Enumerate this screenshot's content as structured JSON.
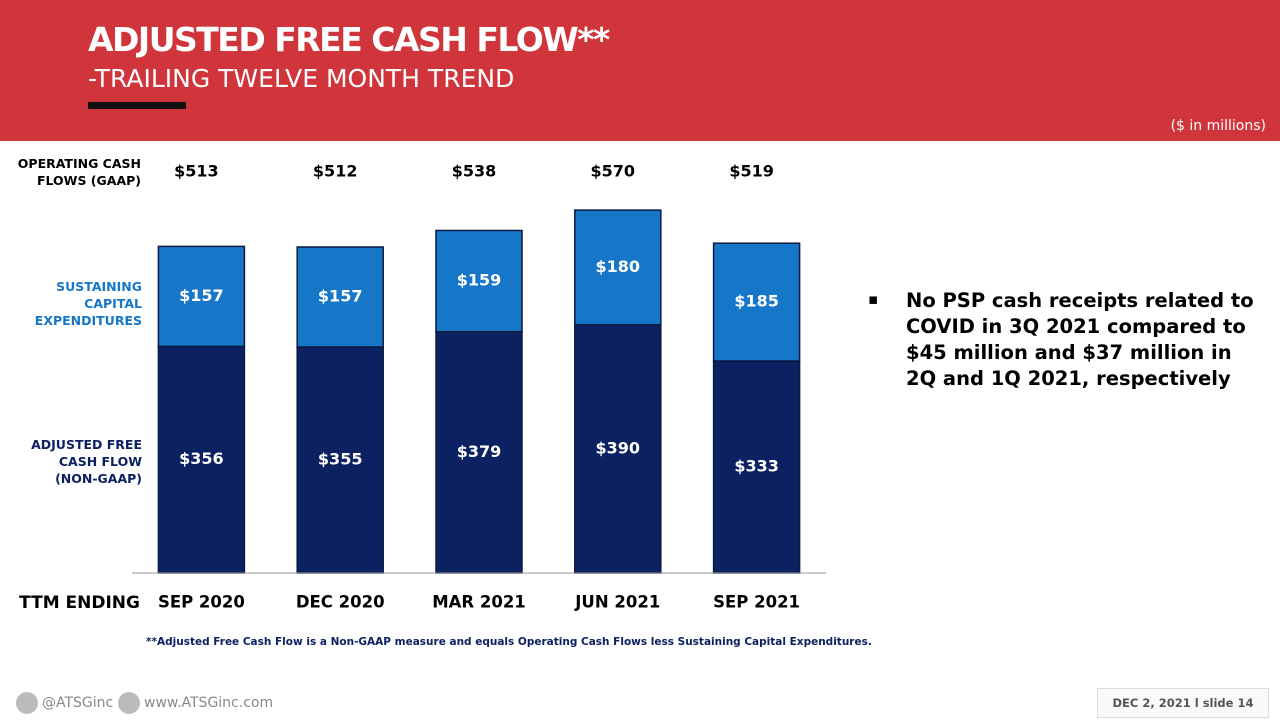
{
  "header": {
    "title": "ADJUSTED FREE CASH FLOW**",
    "subtitle": "-TRAILING TWELVE MONTH TREND",
    "units_note": "($ in millions)"
  },
  "chart_data": {
    "type": "stacked_bar",
    "categories": [
      "SEP 2020",
      "DEC 2020",
      "MAR 2021",
      "JUN 2021",
      "SEP 2021"
    ],
    "category_axis_label": "TTM ENDING",
    "series": [
      {
        "name": "ADJUSTED FREE CASH FLOW (NON-GAAP)",
        "color": "#0c2161",
        "values": [
          356,
          355,
          379,
          390,
          333
        ],
        "value_labels": [
          "$356",
          "$355",
          "$379",
          "$390",
          "$333"
        ]
      },
      {
        "name": "SUSTAINING CAPITAL EXPENDITURES",
        "color": "#1677c9",
        "values": [
          157,
          157,
          159,
          180,
          185
        ],
        "value_labels": [
          "$157",
          "$157",
          "$159",
          "$180",
          "$185"
        ]
      }
    ],
    "operating_cash_flows": {
      "name": "OPERATING CASH FLOWS (GAAP)",
      "values": [
        513,
        512,
        538,
        570,
        519
      ],
      "value_labels": [
        "$513",
        "$512",
        "$538",
        "$570",
        "$519"
      ]
    },
    "ylim": [
      0,
      600
    ]
  },
  "bullet": "No PSP cash receipts related to COVID in 3Q 2021 compared to $45 million and $37 million in 2Q and 1Q 2021, respectively",
  "footnote": "**Adjusted Free Cash Flow is a Non-GAAP measure and equals Operating Cash Flows less Sustaining Capital Expenditures.",
  "footer": {
    "twitter": "@ATSGinc",
    "website": "www.ATSGinc.com",
    "slide": "DEC 2, 2021 l slide 14"
  }
}
